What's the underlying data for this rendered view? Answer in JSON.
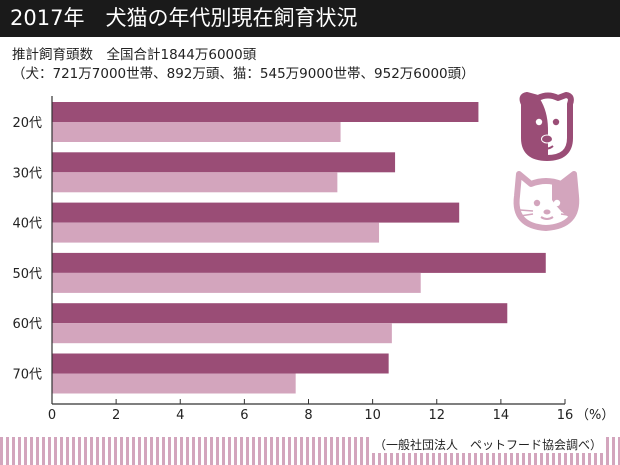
{
  "title": "2017年　犬猫の年代別現在飼育状況",
  "subtitle_line1": "推計飼育頭数　全国合計1844万6000頭",
  "subtitle_line2": "（犬：721万7000世帯、892万頭、猫：545万9000世帯、952万6000頭）",
  "source": "（一般社団法人　ペットフード協会調べ）",
  "icons": [
    "dog-icon",
    "cat-icon"
  ],
  "colors": {
    "dog": "#9a4d76",
    "cat": "#d3a5bd",
    "stripe": "#d3a5bd"
  },
  "chart_data": {
    "type": "bar",
    "orientation": "horizontal",
    "categories": [
      "20代",
      "30代",
      "40代",
      "50代",
      "60代",
      "70代"
    ],
    "series": [
      {
        "values": [
          13.3,
          10.7,
          12.7,
          15.4,
          14.2,
          10.5
        ],
        "color": "#9a4d76"
      },
      {
        "values": [
          9.0,
          8.9,
          10.2,
          11.5,
          10.6,
          7.6
        ],
        "color": "#d3a5bd"
      }
    ],
    "xlim": [
      0,
      16
    ],
    "xticks": [
      0,
      2,
      4,
      6,
      8,
      10,
      12,
      14,
      16
    ],
    "xunit": "（%）",
    "grid": false
  }
}
